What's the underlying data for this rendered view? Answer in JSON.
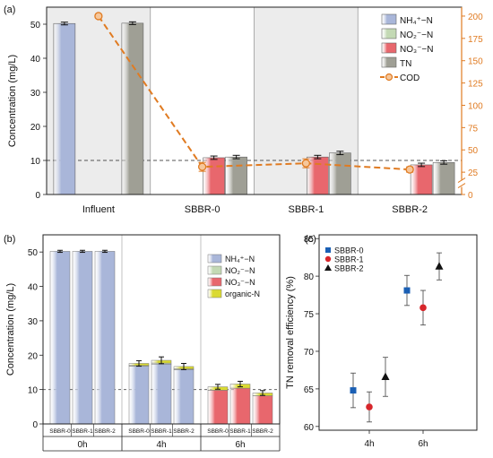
{
  "chart_data": [
    {
      "id": "a",
      "panel_label": "(a)",
      "type": "bar",
      "ylabel": "Concentration (mg/L)",
      "y2label": "",
      "ylim": [
        0,
        55
      ],
      "y2lim": [
        0,
        210
      ],
      "yticks": [
        0,
        10,
        20,
        30,
        40,
        50
      ],
      "y2ticks": [
        0,
        25,
        50,
        75,
        100,
        125,
        150,
        175,
        200
      ],
      "y2_break_between": [
        0,
        25
      ],
      "categories": [
        "Influent",
        "SBBR-0",
        "SBBR-1",
        "SBBR-2"
      ],
      "shaded_categories": [
        "Influent",
        "SBBR-1"
      ],
      "reference_line_y": 10,
      "series": [
        {
          "name": "NH₄⁺−N",
          "color": "#a9b6d9",
          "values": [
            50.2,
            0,
            0,
            0
          ],
          "errors": [
            0.4,
            0,
            0,
            0
          ]
        },
        {
          "name": "NO₂⁻−N",
          "color": "#c3d9b4",
          "values": [
            0,
            0,
            0,
            0
          ],
          "errors": [
            0,
            0,
            0,
            0
          ]
        },
        {
          "name": "NO₃⁻−N",
          "color": "#e8676d",
          "values": [
            0,
            10.8,
            11.0,
            8.7
          ],
          "errors": [
            0,
            0.5,
            0.5,
            0.5
          ]
        },
        {
          "name": "TN",
          "color": "#9f9f95",
          "values": [
            50.3,
            11.0,
            12.2,
            9.4
          ],
          "errors": [
            0.4,
            0.5,
            0.5,
            0.5
          ]
        }
      ],
      "cod": {
        "name": "COD",
        "color": "#e07b22",
        "values": [
          200,
          31,
          35,
          28
        ],
        "errors": [
          0,
          5,
          5,
          3
        ]
      },
      "legend_position": "top-right"
    },
    {
      "id": "b",
      "panel_label": "(b)",
      "type": "bar",
      "ylabel": "Concentration (mg/L)",
      "ylim": [
        0,
        55
      ],
      "yticks": [
        0,
        10,
        20,
        30,
        40,
        50
      ],
      "groups": [
        "0h",
        "4h",
        "6h"
      ],
      "categories": [
        "SBBR-0",
        "SBBR-1",
        "SBBR-2"
      ],
      "reference_line_y": 10,
      "series": [
        {
          "name": "NH₄⁺−N",
          "color": "#a9b6d9",
          "values": [
            [
              50.2,
              50.2,
              50.2
            ],
            [
              16.8,
              17.4,
              15.8
            ],
            [
              0,
              0,
              0
            ]
          ]
        },
        {
          "name": "NO₂⁻−N",
          "color": "#c3d9b4",
          "values": [
            [
              0,
              0,
              0
            ],
            [
              0.2,
              0.3,
              0.2
            ],
            [
              0,
              0,
              0
            ]
          ]
        },
        {
          "name": "NO₃⁻−N",
          "color": "#e8676d",
          "values": [
            [
              0,
              0,
              0
            ],
            [
              0,
              0,
              0
            ],
            [
              9.8,
              10.4,
              8.2
            ]
          ]
        },
        {
          "name": "organic-N",
          "color": "#dada32",
          "values": [
            [
              0,
              0,
              0
            ],
            [
              0.6,
              0.8,
              0.7
            ],
            [
              1.0,
              1.2,
              0.8
            ]
          ]
        }
      ],
      "totals_error": [
        [
          0.3,
          0.3,
          0.3
        ],
        [
          0.8,
          1.0,
          0.9
        ],
        [
          0.7,
          0.8,
          0.7
        ]
      ],
      "legend_position": "top-right"
    },
    {
      "id": "c",
      "panel_label": "(c)",
      "type": "scatter",
      "ylabel": "TN removal efficiency (%)",
      "ylim": [
        59.5,
        85.5
      ],
      "yticks": [
        60,
        65,
        70,
        75,
        80,
        85
      ],
      "groups": [
        "4h",
        "6h"
      ],
      "series": [
        {
          "name": "SBBR-0",
          "color": "#1a5fb4",
          "marker": "square",
          "values": [
            64.8,
            78.1
          ],
          "errors": [
            2.3,
            2.0
          ]
        },
        {
          "name": "SBBR-1",
          "color": "#d7262b",
          "marker": "circle",
          "values": [
            62.6,
            75.8
          ],
          "errors": [
            2.0,
            2.3
          ]
        },
        {
          "name": "SBBR-2",
          "color": "#111111",
          "marker": "triangle",
          "values": [
            66.6,
            81.3
          ],
          "errors": [
            2.6,
            1.8
          ]
        }
      ],
      "legend_position": "top-left"
    }
  ]
}
